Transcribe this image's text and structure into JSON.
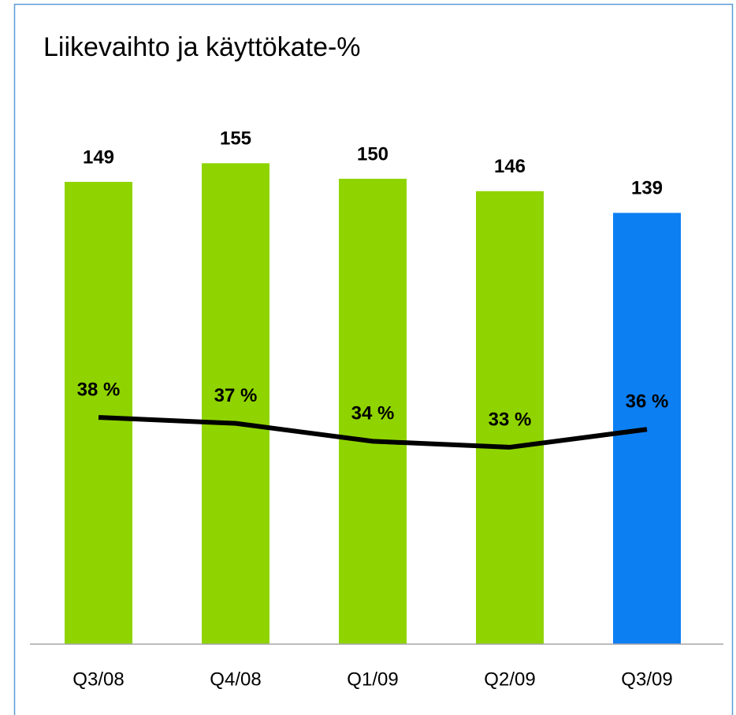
{
  "chart_data": {
    "type": "bar",
    "title": "Liikevaihto ja käyttökate-%",
    "categories": [
      "Q3/08",
      "Q4/08",
      "Q1/09",
      "Q2/09",
      "Q3/09"
    ],
    "ylim": [
      0,
      200
    ],
    "y2lim": [
      0,
      104
    ],
    "series": [
      {
        "type": "bar",
        "values": [
          149,
          155,
          150,
          146,
          139
        ],
        "colors": [
          "#8fd400",
          "#8fd400",
          "#8fd400",
          "#8fd400",
          "#0c7ff2"
        ]
      },
      {
        "type": "line",
        "axis": "y2",
        "color": "#000000",
        "values": [
          38,
          37,
          34,
          33,
          36
        ],
        "value_labels": [
          "38 %",
          "37 %",
          "34 %",
          "33 %",
          "36 %"
        ]
      }
    ]
  }
}
